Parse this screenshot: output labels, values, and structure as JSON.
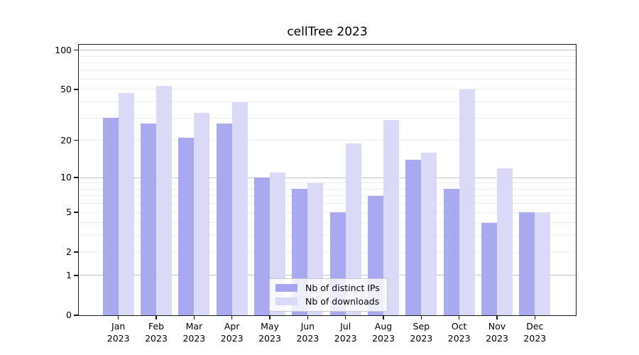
{
  "chart_data": {
    "type": "bar",
    "title": "cellTree 2023",
    "categories": [
      "Jan 2023",
      "Feb 2023",
      "Mar 2023",
      "Apr 2023",
      "May 2023",
      "Jun 2023",
      "Jul 2023",
      "Aug 2023",
      "Sep 2023",
      "Oct 2023",
      "Nov 2023",
      "Dec 2023"
    ],
    "x_tick_month": [
      "Jan",
      "Feb",
      "Mar",
      "Apr",
      "May",
      "Jun",
      "Jul",
      "Aug",
      "Sep",
      "Oct",
      "Nov",
      "Dec"
    ],
    "x_tick_year": "2023",
    "series": [
      {
        "name": "Nb of distinct IPs",
        "color": "#a6a6f0",
        "values": [
          30,
          27,
          21,
          27,
          10,
          8,
          5,
          7,
          14,
          8,
          4,
          5
        ]
      },
      {
        "name": "Nb of downloads",
        "color": "#d9d9f8",
        "values": [
          47,
          53,
          33,
          40,
          11,
          9,
          19,
          29,
          16,
          50,
          12,
          5
        ]
      }
    ],
    "y_scale": "log10(1+x)",
    "y_ticks": [
      0,
      1,
      2,
      5,
      10,
      20,
      50,
      100
    ],
    "ylim": [
      0,
      110
    ],
    "grid": true,
    "legend_position": "lower center inside",
    "colors": {
      "grid_major": "#c3c3c3",
      "grid_minor": "#ebebeb",
      "axis": "#1a1a1a"
    }
  }
}
